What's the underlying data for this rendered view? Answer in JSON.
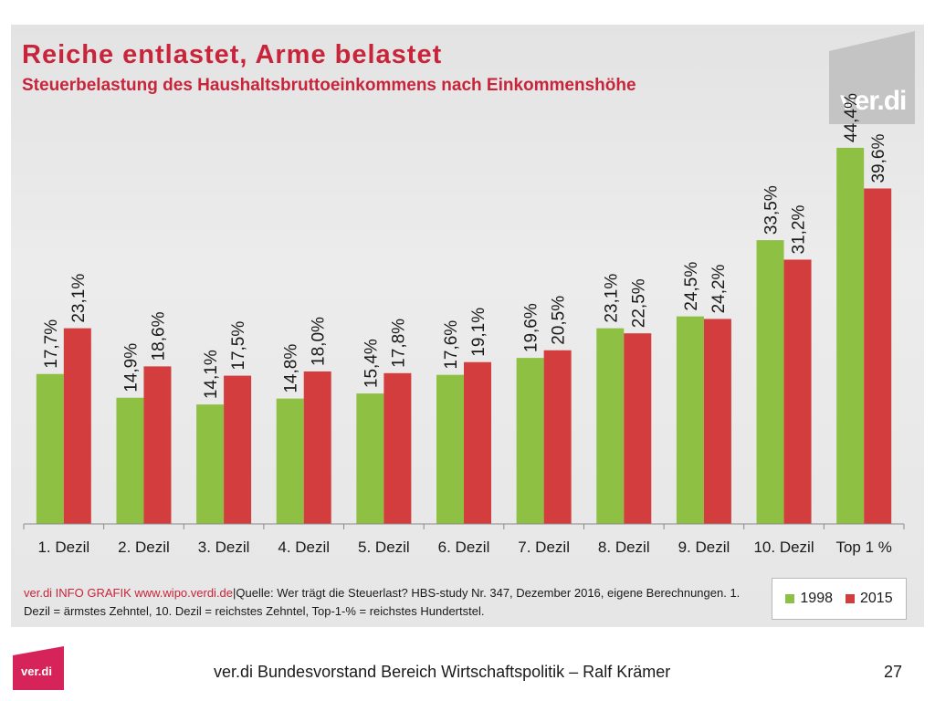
{
  "slide": {
    "title": "Reiche entlastet, Arme belastet",
    "subtitle": "Steuerbelastung des Haushaltsbruttoeinkommens nach Einkommenshöhe",
    "logo_text": "ver.di",
    "source_prefix": "ver.di INFO GRAFIK www.wipo.verdi.de",
    "source_separator": "|",
    "source_quelle": "Quelle:",
    "source_text": "Wer trägt die Steuerlast? HBS-study Nr. 347, Dezember 2016, eigene Berechnungen. 1. Dezil = ärmstes Zehntel, 10. Dezil = reichstes Zehntel, Top-1-% = reichstes Hundertstel.",
    "footer": "ver.di Bundesvorstand Bereich Wirtschaftspolitik – Ralf Krämer",
    "page_number": "27"
  },
  "colors": {
    "title": "#c8243a",
    "series_1998": "#8dc043",
    "series_2015": "#d43d3d",
    "panel": "#e6e6e6"
  },
  "chart_data": {
    "type": "bar",
    "title": "Reiche entlastet, Arme belastet",
    "subtitle": "Steuerbelastung des Haushaltsbruttoeinkommens nach Einkommenshöhe",
    "categories": [
      "1. Dezil",
      "2. Dezil",
      "3. Dezil",
      "4. Dezil",
      "5. Dezil",
      "6. Dezil",
      "7. Dezil",
      "8. Dezil",
      "9. Dezil",
      "10. Dezil",
      "Top 1 %"
    ],
    "series": [
      {
        "name": "1998",
        "values": [
          17.7,
          14.9,
          14.1,
          14.8,
          15.4,
          17.6,
          19.6,
          23.1,
          24.5,
          33.5,
          44.4
        ],
        "labels": [
          "17,7%",
          "14,9%",
          "14,1%",
          "14,8%",
          "15,4%",
          "17,6%",
          "19,6%",
          "23,1%",
          "24,5%",
          "33,5%",
          "44,4%"
        ]
      },
      {
        "name": "2015",
        "values": [
          23.1,
          18.6,
          17.5,
          18.0,
          17.8,
          19.1,
          20.5,
          22.5,
          24.2,
          31.2,
          39.6
        ],
        "labels": [
          "23,1%",
          "18,6%",
          "17,5%",
          "18,0%",
          "17,8%",
          "19,1%",
          "20,5%",
          "22,5%",
          "24,2%",
          "31,2%",
          "39,6%"
        ]
      }
    ],
    "ylim": [
      0,
      50
    ],
    "grid": false,
    "legend_position": "bottom-right",
    "data_label_orientation": "vertical"
  }
}
